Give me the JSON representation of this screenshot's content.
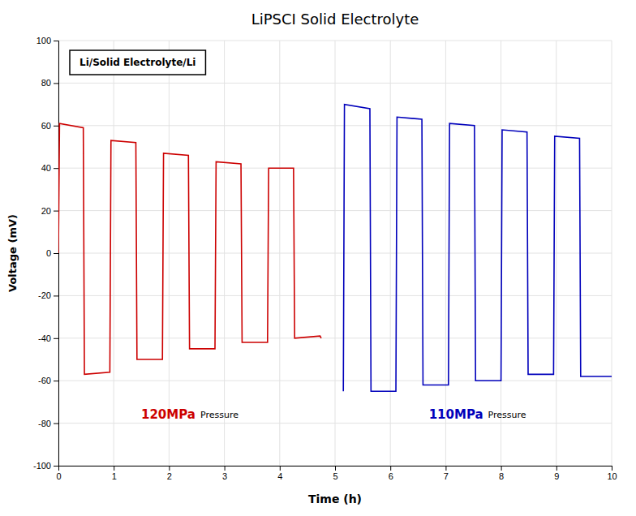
{
  "chart_data": {
    "type": "line",
    "title": "LiPSCI Solid Electrolyte",
    "xlabel": "Time (h)",
    "ylabel": "Voltage (mV)",
    "xlim": [
      0,
      10
    ],
    "ylim": [
      -100,
      100
    ],
    "xticks": [
      0,
      1,
      2,
      3,
      4,
      5,
      6,
      7,
      8,
      9,
      10
    ],
    "yticks": [
      -100,
      -80,
      -60,
      -40,
      -20,
      0,
      20,
      40,
      60,
      80,
      100
    ],
    "grid": true,
    "annotations": [
      {
        "text": "Li/Solid Electrolyte/Li"
      },
      {
        "text": "120MPa",
        "color": "#cc0000"
      },
      {
        "text": "Pressure"
      },
      {
        "text": "110MPa",
        "color": "#0000bb"
      },
      {
        "text": "Pressure"
      }
    ],
    "series": [
      {
        "color": "#cc0000",
        "x": [
          0.0,
          0.02,
          0.02,
          0.45,
          0.45,
          0.47,
          0.47,
          0.93,
          0.93,
          0.95,
          0.95,
          1.4,
          1.4,
          1.42,
          1.42,
          1.88,
          1.88,
          1.9,
          1.9,
          2.35,
          2.35,
          2.37,
          2.37,
          2.83,
          2.83,
          2.85,
          2.85,
          3.3,
          3.3,
          3.32,
          3.32,
          3.78,
          3.78,
          3.8,
          3.8,
          4.25,
          4.25,
          4.27,
          4.27,
          4.73,
          4.73,
          4.75
        ],
        "values": [
          0,
          61,
          61,
          59,
          59,
          -57,
          -57,
          -56,
          -56,
          53,
          53,
          52,
          52,
          -50,
          -50,
          -50,
          -50,
          47,
          47,
          46,
          46,
          -45,
          -45,
          -45,
          -45,
          43,
          43,
          42,
          42,
          -42,
          -42,
          -42,
          -42,
          40,
          40,
          40,
          40,
          -40,
          -40,
          -39,
          -39,
          -40
        ]
      },
      {
        "color": "#0000bb",
        "x": [
          5.15,
          5.17,
          5.17,
          5.63,
          5.63,
          5.65,
          5.65,
          6.1,
          6.1,
          6.12,
          6.12,
          6.57,
          6.57,
          6.59,
          6.59,
          7.05,
          7.05,
          7.07,
          7.07,
          7.52,
          7.52,
          7.54,
          7.54,
          8.0,
          8.0,
          8.02,
          8.02,
          8.47,
          8.47,
          8.49,
          8.49,
          8.95,
          8.95,
          8.97,
          8.97,
          9.42,
          9.42,
          9.44,
          9.44,
          9.9,
          9.9,
          10.0
        ],
        "values": [
          -65,
          70,
          70,
          68,
          68,
          -65,
          -65,
          -65,
          -65,
          64,
          64,
          63,
          63,
          -62,
          -62,
          -62,
          -62,
          61,
          61,
          60,
          60,
          -60,
          -60,
          -60,
          -60,
          58,
          58,
          57,
          57,
          -57,
          -57,
          -57,
          -57,
          55,
          55,
          54,
          54,
          -58,
          -58,
          -58,
          -58,
          -58
        ]
      }
    ]
  }
}
